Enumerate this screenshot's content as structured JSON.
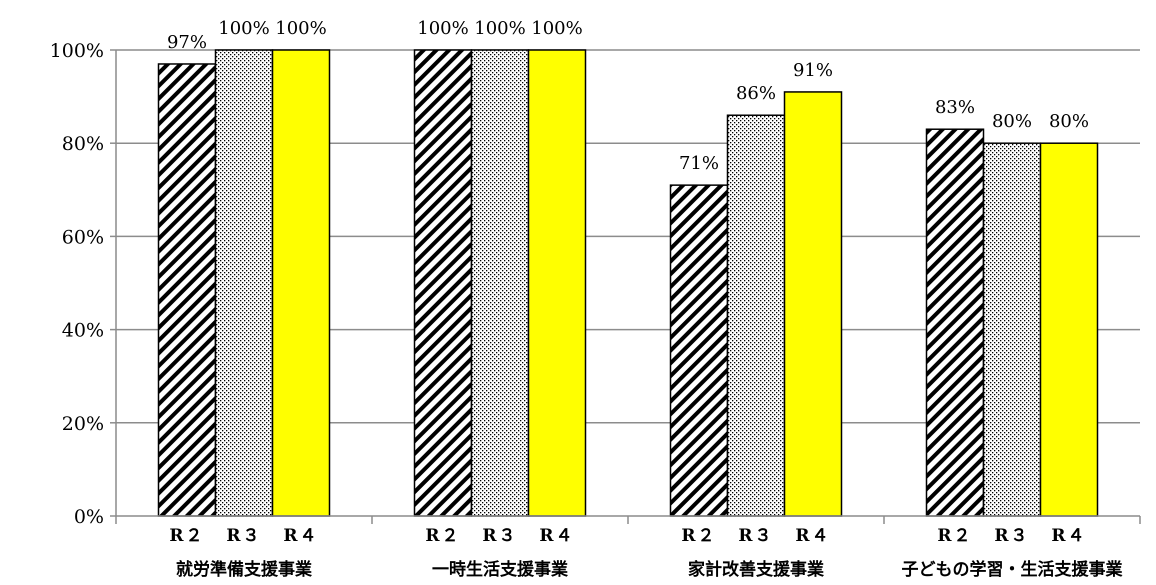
{
  "chart_data": {
    "type": "bar",
    "title": "",
    "xlabel": "",
    "ylabel": "",
    "ylim": [
      0,
      100
    ],
    "yticks": [
      0,
      20,
      40,
      60,
      80,
      100
    ],
    "ytick_labels": [
      "0%",
      "20%",
      "40%",
      "60%",
      "80%",
      "100%"
    ],
    "grid": true,
    "legend": "none",
    "categories": [
      "就労準備支援事業",
      "一時生活支援事業",
      "家計改善支援事業",
      "子どもの学習・生活支援事業"
    ],
    "series": [
      {
        "bar_label": "R２",
        "pattern": "diagonal-hatch",
        "color": "#000000",
        "values": [
          97,
          100,
          71,
          83
        ]
      },
      {
        "bar_label": "R３",
        "pattern": "dots",
        "color": "#000000",
        "values": [
          100,
          100,
          86,
          80
        ]
      },
      {
        "bar_label": "R４",
        "pattern": "solid",
        "color": "#ffff00",
        "values": [
          100,
          100,
          91,
          80
        ]
      }
    ],
    "data_labels": [
      [
        "97%",
        "100%",
        "71%",
        "83%"
      ],
      [
        "100%",
        "100%",
        "86%",
        "80%"
      ],
      [
        "100%",
        "100%",
        "91%",
        "80%"
      ]
    ]
  }
}
